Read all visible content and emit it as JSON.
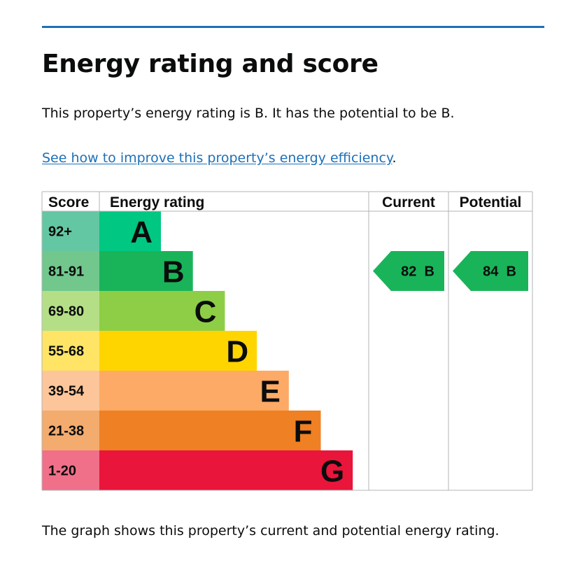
{
  "page": {
    "title": "Energy rating and score",
    "intro": "This property’s energy rating is B. It has the potential to be B.",
    "link_text": "See how to improve this property’s energy efficiency",
    "link_suffix": ".",
    "caption": "The graph shows this property’s current and potential energy rating."
  },
  "colors": {
    "accent_rule": "#1d70b8",
    "link": "#1d70b8",
    "grid": "#b1b4b6"
  },
  "chart_data": {
    "type": "bar",
    "headers": {
      "score": "Score",
      "rating": "Energy rating",
      "current": "Current",
      "potential": "Potential"
    },
    "bands": [
      {
        "letter": "A",
        "range": "92+",
        "color": "#00c781",
        "score_bg": "#64c7a3"
      },
      {
        "letter": "B",
        "range": "81-91",
        "color": "#19b459",
        "score_bg": "#72c78c"
      },
      {
        "letter": "C",
        "range": "69-80",
        "color": "#8dce46",
        "score_bg": "#b5df86"
      },
      {
        "letter": "D",
        "range": "55-68",
        "color": "#ffd500",
        "score_bg": "#ffe466"
      },
      {
        "letter": "E",
        "range": "39-54",
        "color": "#fcaa65",
        "score_bg": "#fdc69a"
      },
      {
        "letter": "F",
        "range": "21-38",
        "color": "#ef8023",
        "score_bg": "#f4ab6e"
      },
      {
        "letter": "G",
        "range": "1-20",
        "color": "#e9153b",
        "score_bg": "#f07089"
      }
    ],
    "current": {
      "score": 82,
      "band": "B",
      "label": "82 B",
      "color": "#19b459"
    },
    "potential": {
      "score": 84,
      "band": "B",
      "label": "84 B",
      "color": "#19b459"
    }
  }
}
